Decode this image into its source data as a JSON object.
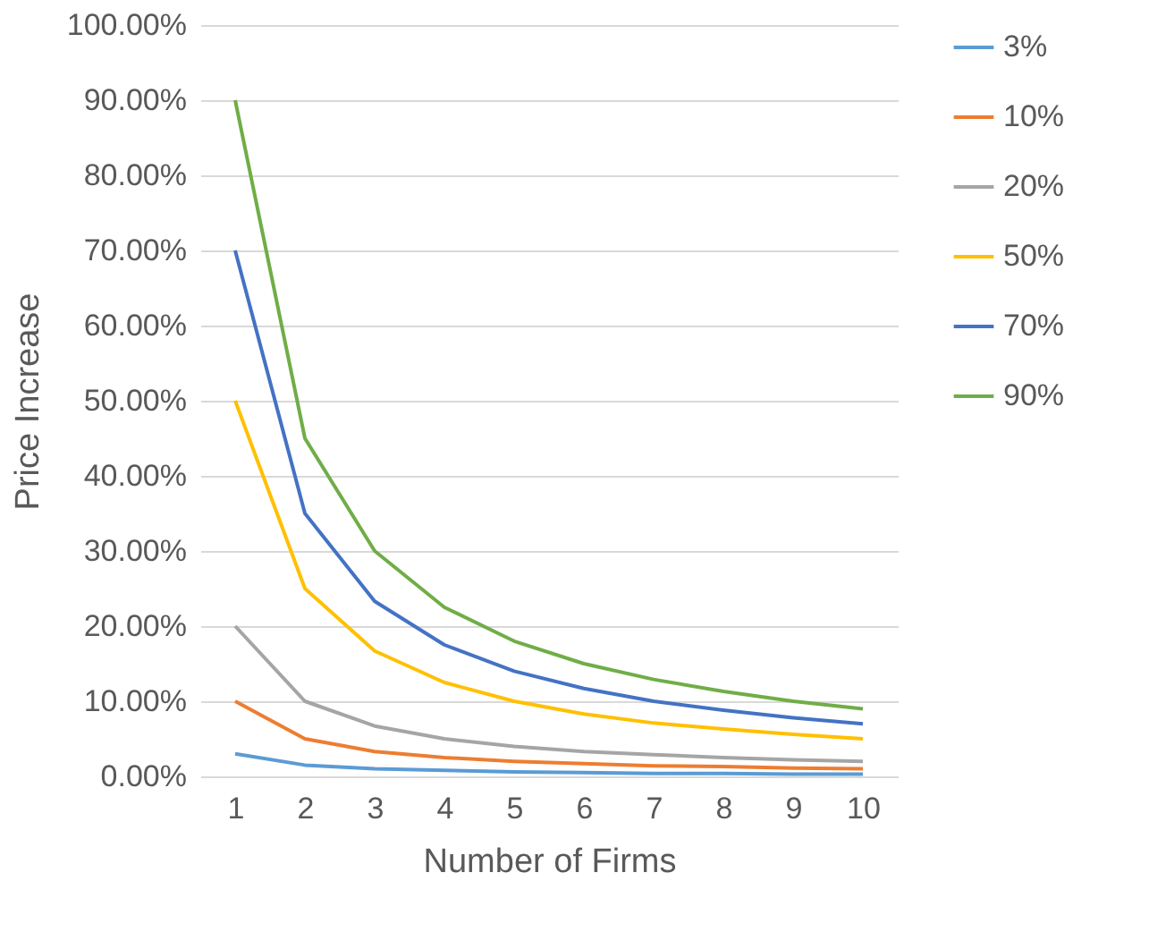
{
  "chart_data": {
    "type": "line",
    "xlabel": "Number of Firms",
    "ylabel": "Price Increase",
    "categories": [
      "1",
      "2",
      "3",
      "4",
      "5",
      "6",
      "7",
      "8",
      "9",
      "10"
    ],
    "series": [
      {
        "name": "3%",
        "color": "#5b9bd5",
        "values": [
          3,
          1.5,
          1,
          0.8,
          0.6,
          0.5,
          0.4,
          0.4,
          0.3,
          0.3
        ]
      },
      {
        "name": "10%",
        "color": "#ed7d31",
        "values": [
          10,
          5,
          3.3,
          2.5,
          2,
          1.7,
          1.4,
          1.3,
          1.1,
          1
        ]
      },
      {
        "name": "20%",
        "color": "#a5a5a5",
        "values": [
          20,
          10,
          6.7,
          5,
          4,
          3.3,
          2.9,
          2.5,
          2.2,
          2
        ]
      },
      {
        "name": "50%",
        "color": "#ffc000",
        "values": [
          50,
          25,
          16.7,
          12.5,
          10,
          8.3,
          7.1,
          6.3,
          5.6,
          5
        ]
      },
      {
        "name": "70%",
        "color": "#4472c4",
        "values": [
          70,
          35,
          23.3,
          17.5,
          14,
          11.7,
          10,
          8.8,
          7.8,
          7
        ]
      },
      {
        "name": "90%",
        "color": "#70ad47",
        "values": [
          90,
          45,
          30,
          22.5,
          18,
          15,
          12.9,
          11.3,
          10,
          9
        ]
      }
    ],
    "ylim": [
      0,
      100
    ],
    "yticks": [
      {
        "value": 0,
        "label": "0.00%"
      },
      {
        "value": 10,
        "label": "10.00%"
      },
      {
        "value": 20,
        "label": "20.00%"
      },
      {
        "value": 30,
        "label": "30.00%"
      },
      {
        "value": 40,
        "label": "40.00%"
      },
      {
        "value": 50,
        "label": "50.00%"
      },
      {
        "value": 60,
        "label": "60.00%"
      },
      {
        "value": 70,
        "label": "70.00%"
      },
      {
        "value": 80,
        "label": "80.00%"
      },
      {
        "value": 90,
        "label": "90.00%"
      },
      {
        "value": 100,
        "label": "100.00%"
      }
    ],
    "grid": "y",
    "legend": "right",
    "marker": "none",
    "line_style": "solid"
  }
}
